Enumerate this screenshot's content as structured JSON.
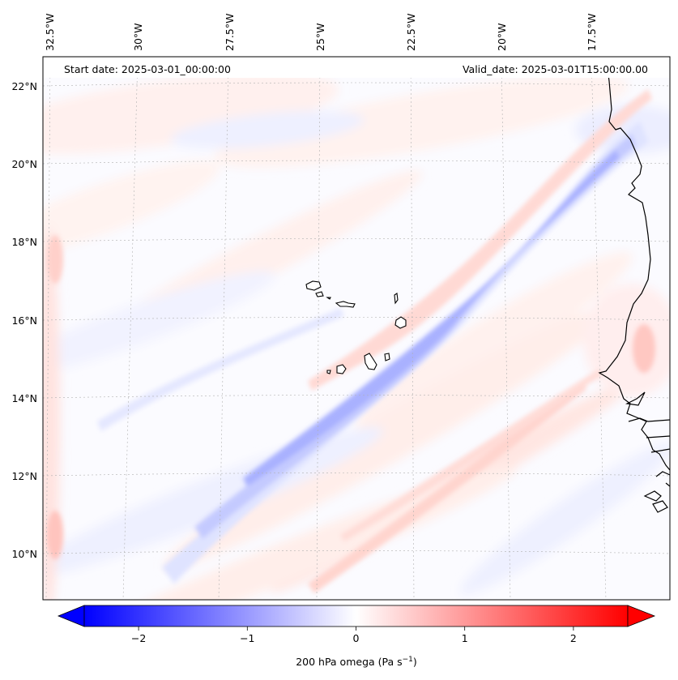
{
  "figure": {
    "annotations": {
      "start_date": "Start date: 2025-03-01_00:00:00",
      "valid_date": "Valid_date: 2025-03-01T15:00:00.00"
    },
    "colorbar": {
      "label_main": "200 hPa omega (Pa s",
      "label_exponent": "−1",
      "label_close": ")",
      "ticks": [
        {
          "value": -2,
          "label": "−2"
        },
        {
          "value": -1,
          "label": "−1"
        },
        {
          "value": 0,
          "label": "0"
        },
        {
          "value": 1,
          "label": "1"
        },
        {
          "value": 2,
          "label": "2"
        }
      ],
      "range": [
        -2.5,
        2.5
      ],
      "colormap": "bwr",
      "extend": "both"
    },
    "lon_labels": [
      "32.5°W",
      "30°W",
      "27.5°W",
      "25°W",
      "22.5°W",
      "20°W",
      "17.5°W"
    ],
    "lat_labels": [
      "22°N",
      "20°N",
      "18°N",
      "16°N",
      "14°N",
      "12°N",
      "10°N"
    ],
    "colors": {
      "negative": "#0000ff",
      "zero": "#ffffff",
      "positive": "#ff0000",
      "coastline": "#000000",
      "gridline": "#b0b0b0"
    }
  }
}
